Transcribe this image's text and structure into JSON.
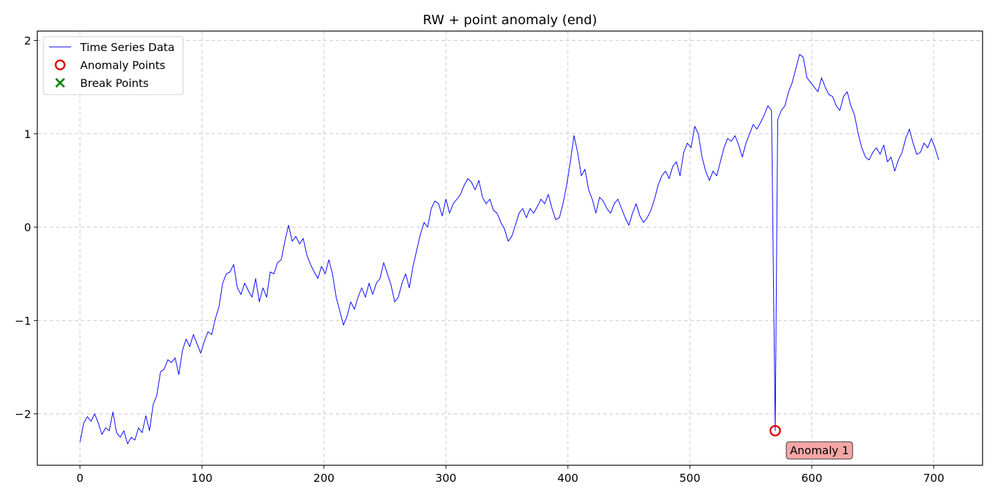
{
  "chart_data": {
    "type": "line",
    "title": "RW + point anomaly (end)",
    "xlabel": "",
    "ylabel": "",
    "xlim": [
      -35,
      740
    ],
    "ylim": [
      -2.55,
      2.1
    ],
    "x_ticks": [
      0,
      100,
      200,
      300,
      400,
      500,
      600,
      700
    ],
    "y_ticks": [
      -2,
      -1,
      0,
      1,
      2
    ],
    "y_tick_labels": [
      "−2",
      "−1",
      "0",
      "1",
      "2"
    ],
    "grid": true,
    "legend_position": "top-left",
    "legend": [
      {
        "label": "Time Series Data",
        "kind": "line",
        "color": "#0000ff"
      },
      {
        "label": "Anomaly Points",
        "kind": "circle",
        "color": "#e00000"
      },
      {
        "label": "Break Points",
        "kind": "cross",
        "color": "#008000"
      }
    ],
    "series": [
      {
        "name": "Time Series Data",
        "color": "#0000ff",
        "points": [
          [
            0,
            -2.3
          ],
          [
            3,
            -2.1
          ],
          [
            6,
            -2.03
          ],
          [
            9,
            -2.08
          ],
          [
            12,
            -2.0
          ],
          [
            15,
            -2.1
          ],
          [
            18,
            -2.22
          ],
          [
            21,
            -2.15
          ],
          [
            24,
            -2.18
          ],
          [
            27,
            -1.98
          ],
          [
            30,
            -2.2
          ],
          [
            33,
            -2.25
          ],
          [
            36,
            -2.18
          ],
          [
            39,
            -2.32
          ],
          [
            42,
            -2.25
          ],
          [
            45,
            -2.28
          ],
          [
            48,
            -2.15
          ],
          [
            51,
            -2.2
          ],
          [
            54,
            -2.02
          ],
          [
            57,
            -2.18
          ],
          [
            60,
            -1.9
          ],
          [
            63,
            -1.8
          ],
          [
            66,
            -1.55
          ],
          [
            69,
            -1.52
          ],
          [
            72,
            -1.42
          ],
          [
            75,
            -1.45
          ],
          [
            78,
            -1.4
          ],
          [
            81,
            -1.58
          ],
          [
            84,
            -1.32
          ],
          [
            87,
            -1.2
          ],
          [
            90,
            -1.28
          ],
          [
            93,
            -1.15
          ],
          [
            96,
            -1.25
          ],
          [
            99,
            -1.35
          ],
          [
            102,
            -1.22
          ],
          [
            105,
            -1.12
          ],
          [
            108,
            -1.15
          ],
          [
            111,
            -0.98
          ],
          [
            114,
            -0.85
          ],
          [
            117,
            -0.6
          ],
          [
            120,
            -0.5
          ],
          [
            123,
            -0.48
          ],
          [
            126,
            -0.4
          ],
          [
            129,
            -0.65
          ],
          [
            132,
            -0.72
          ],
          [
            135,
            -0.6
          ],
          [
            138,
            -0.68
          ],
          [
            141,
            -0.75
          ],
          [
            144,
            -0.55
          ],
          [
            147,
            -0.8
          ],
          [
            150,
            -0.65
          ],
          [
            153,
            -0.75
          ],
          [
            156,
            -0.48
          ],
          [
            159,
            -0.5
          ],
          [
            162,
            -0.38
          ],
          [
            165,
            -0.35
          ],
          [
            168,
            -0.15
          ],
          [
            171,
            0.02
          ],
          [
            174,
            -0.15
          ],
          [
            177,
            -0.1
          ],
          [
            180,
            -0.18
          ],
          [
            183,
            -0.12
          ],
          [
            186,
            -0.3
          ],
          [
            189,
            -0.4
          ],
          [
            192,
            -0.48
          ],
          [
            195,
            -0.55
          ],
          [
            198,
            -0.42
          ],
          [
            201,
            -0.5
          ],
          [
            204,
            -0.35
          ],
          [
            207,
            -0.5
          ],
          [
            210,
            -0.75
          ],
          [
            213,
            -0.9
          ],
          [
            216,
            -1.05
          ],
          [
            219,
            -0.95
          ],
          [
            222,
            -0.8
          ],
          [
            225,
            -0.88
          ],
          [
            228,
            -0.75
          ],
          [
            231,
            -0.65
          ],
          [
            234,
            -0.75
          ],
          [
            237,
            -0.6
          ],
          [
            240,
            -0.72
          ],
          [
            243,
            -0.6
          ],
          [
            246,
            -0.55
          ],
          [
            249,
            -0.38
          ],
          [
            252,
            -0.5
          ],
          [
            255,
            -0.62
          ],
          [
            258,
            -0.8
          ],
          [
            261,
            -0.75
          ],
          [
            264,
            -0.6
          ],
          [
            267,
            -0.5
          ],
          [
            270,
            -0.65
          ],
          [
            273,
            -0.42
          ],
          [
            276,
            -0.25
          ],
          [
            279,
            -0.08
          ],
          [
            282,
            0.05
          ],
          [
            285,
            0.0
          ],
          [
            288,
            0.2
          ],
          [
            291,
            0.28
          ],
          [
            294,
            0.25
          ],
          [
            297,
            0.12
          ],
          [
            300,
            0.3
          ],
          [
            303,
            0.15
          ],
          [
            306,
            0.25
          ],
          [
            309,
            0.3
          ],
          [
            312,
            0.35
          ],
          [
            315,
            0.45
          ],
          [
            318,
            0.52
          ],
          [
            321,
            0.48
          ],
          [
            324,
            0.4
          ],
          [
            327,
            0.5
          ],
          [
            330,
            0.32
          ],
          [
            333,
            0.25
          ],
          [
            336,
            0.3
          ],
          [
            339,
            0.18
          ],
          [
            342,
            0.15
          ],
          [
            345,
            0.05
          ],
          [
            348,
            -0.02
          ],
          [
            351,
            -0.15
          ],
          [
            354,
            -0.1
          ],
          [
            357,
            0.02
          ],
          [
            360,
            0.15
          ],
          [
            363,
            0.2
          ],
          [
            366,
            0.1
          ],
          [
            369,
            0.2
          ],
          [
            372,
            0.15
          ],
          [
            375,
            0.22
          ],
          [
            378,
            0.3
          ],
          [
            381,
            0.25
          ],
          [
            384,
            0.35
          ],
          [
            387,
            0.2
          ],
          [
            390,
            0.08
          ],
          [
            393,
            0.1
          ],
          [
            396,
            0.25
          ],
          [
            399,
            0.45
          ],
          [
            402,
            0.7
          ],
          [
            405,
            0.98
          ],
          [
            408,
            0.8
          ],
          [
            411,
            0.55
          ],
          [
            414,
            0.62
          ],
          [
            417,
            0.4
          ],
          [
            420,
            0.3
          ],
          [
            423,
            0.15
          ],
          [
            426,
            0.32
          ],
          [
            429,
            0.28
          ],
          [
            432,
            0.2
          ],
          [
            435,
            0.15
          ],
          [
            438,
            0.25
          ],
          [
            441,
            0.3
          ],
          [
            444,
            0.2
          ],
          [
            447,
            0.1
          ],
          [
            450,
            0.02
          ],
          [
            453,
            0.15
          ],
          [
            456,
            0.25
          ],
          [
            459,
            0.12
          ],
          [
            462,
            0.05
          ],
          [
            465,
            0.1
          ],
          [
            468,
            0.18
          ],
          [
            471,
            0.3
          ],
          [
            474,
            0.45
          ],
          [
            477,
            0.55
          ],
          [
            480,
            0.6
          ],
          [
            483,
            0.52
          ],
          [
            486,
            0.65
          ],
          [
            489,
            0.7
          ],
          [
            492,
            0.55
          ],
          [
            495,
            0.8
          ],
          [
            498,
            0.9
          ],
          [
            501,
            0.85
          ],
          [
            504,
            1.08
          ],
          [
            507,
            1.0
          ],
          [
            510,
            0.75
          ],
          [
            513,
            0.6
          ],
          [
            516,
            0.5
          ],
          [
            519,
            0.6
          ],
          [
            522,
            0.55
          ],
          [
            525,
            0.7
          ],
          [
            528,
            0.85
          ],
          [
            531,
            0.95
          ],
          [
            534,
            0.92
          ],
          [
            537,
            0.98
          ],
          [
            540,
            0.88
          ],
          [
            543,
            0.75
          ],
          [
            546,
            0.9
          ],
          [
            549,
            1.0
          ],
          [
            552,
            1.1
          ],
          [
            555,
            1.05
          ],
          [
            558,
            1.12
          ],
          [
            561,
            1.2
          ],
          [
            564,
            1.3
          ],
          [
            567,
            1.25
          ],
          [
            570,
            -2.18
          ],
          [
            572,
            1.15
          ],
          [
            575,
            1.25
          ],
          [
            578,
            1.3
          ],
          [
            581,
            1.45
          ],
          [
            584,
            1.55
          ],
          [
            587,
            1.7
          ],
          [
            590,
            1.85
          ],
          [
            593,
            1.82
          ],
          [
            596,
            1.6
          ],
          [
            599,
            1.55
          ],
          [
            602,
            1.5
          ],
          [
            605,
            1.45
          ],
          [
            608,
            1.6
          ],
          [
            611,
            1.5
          ],
          [
            614,
            1.42
          ],
          [
            617,
            1.4
          ],
          [
            620,
            1.3
          ],
          [
            623,
            1.25
          ],
          [
            626,
            1.4
          ],
          [
            629,
            1.45
          ],
          [
            632,
            1.3
          ],
          [
            635,
            1.2
          ],
          [
            638,
            1.0
          ],
          [
            641,
            0.85
          ],
          [
            644,
            0.75
          ],
          [
            647,
            0.72
          ],
          [
            650,
            0.8
          ],
          [
            653,
            0.85
          ],
          [
            656,
            0.78
          ],
          [
            659,
            0.88
          ],
          [
            662,
            0.7
          ],
          [
            665,
            0.75
          ],
          [
            668,
            0.6
          ],
          [
            671,
            0.72
          ],
          [
            674,
            0.8
          ],
          [
            677,
            0.95
          ],
          [
            680,
            1.05
          ],
          [
            683,
            0.9
          ],
          [
            686,
            0.78
          ],
          [
            689,
            0.8
          ],
          [
            692,
            0.9
          ],
          [
            695,
            0.85
          ],
          [
            698,
            0.95
          ],
          [
            701,
            0.85
          ],
          [
            704,
            0.72
          ]
        ]
      },
      {
        "name": "Anomaly Points",
        "color": "#e00000",
        "points": [
          [
            570,
            -2.18
          ]
        ]
      }
    ],
    "annotations": [
      {
        "text": "Anomaly 1",
        "x": 570,
        "y": -2.18,
        "bg_color": "#f4a6a6"
      }
    ]
  }
}
